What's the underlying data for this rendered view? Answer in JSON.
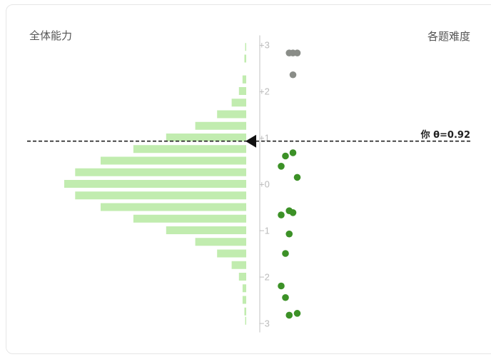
{
  "labels": {
    "left": "全体能力",
    "right": "各题难度",
    "you": "你 θ=0.92"
  },
  "colors": {
    "bar": "#c1ecaf",
    "easy_item": "#3c9127",
    "hard_item": "#8a8d88",
    "axis": "#cccccc",
    "tick_text": "#bbbbbb",
    "line": "#222222"
  },
  "chart_data": {
    "type": "bar",
    "orientation": "horizontal",
    "ylim": [
      -3,
      3
    ],
    "ticks": [
      {
        "value": 3,
        "label": "+3"
      },
      {
        "value": 2,
        "label": "+2"
      },
      {
        "value": 1,
        "label": "+1"
      },
      {
        "value": 0,
        "label": "+0"
      },
      {
        "value": -1,
        "label": "−1"
      },
      {
        "value": -2,
        "label": "−2"
      },
      {
        "value": -3,
        "label": "−3"
      }
    ],
    "ability_distribution": {
      "theta": [
        2.95,
        2.7,
        2.25,
        2.25,
        2.0,
        1.75,
        1.5,
        1.25,
        1.0,
        0.75,
        0.5,
        0.25,
        0.0,
        -0.25,
        -0.5,
        -0.75,
        -1.0,
        -1.25,
        -1.5,
        -1.75,
        -2.0,
        -2.25,
        -2.5,
        -2.75,
        -2.95
      ],
      "density": [
        0.005,
        0.01,
        0.02,
        0.02,
        0.04,
        0.08,
        0.16,
        0.28,
        0.44,
        0.62,
        0.8,
        0.94,
        1.0,
        0.94,
        0.8,
        0.62,
        0.44,
        0.28,
        0.16,
        0.08,
        0.04,
        0.02,
        0.02,
        0.01,
        0.005
      ]
    },
    "items": [
      {
        "difficulty": 2.82,
        "offset": 0.55
      },
      {
        "difficulty": 2.82,
        "offset": 0.62
      },
      {
        "difficulty": 2.82,
        "offset": 0.7
      },
      {
        "difficulty": 2.35,
        "offset": 0.62
      },
      {
        "difficulty": 0.67,
        "offset": 0.62
      },
      {
        "difficulty": 0.6,
        "offset": 0.48
      },
      {
        "difficulty": 0.38,
        "offset": 0.4
      },
      {
        "difficulty": 0.14,
        "offset": 0.7
      },
      {
        "difficulty": -0.58,
        "offset": 0.55
      },
      {
        "difficulty": -0.62,
        "offset": 0.62
      },
      {
        "difficulty": -0.67,
        "offset": 0.4
      },
      {
        "difficulty": -1.08,
        "offset": 0.55
      },
      {
        "difficulty": -1.5,
        "offset": 0.48
      },
      {
        "difficulty": -2.2,
        "offset": 0.4
      },
      {
        "difficulty": -2.45,
        "offset": 0.48
      },
      {
        "difficulty": -2.79,
        "offset": 0.7
      },
      {
        "difficulty": -2.83,
        "offset": 0.55
      }
    ],
    "you_theta": 0.92
  }
}
